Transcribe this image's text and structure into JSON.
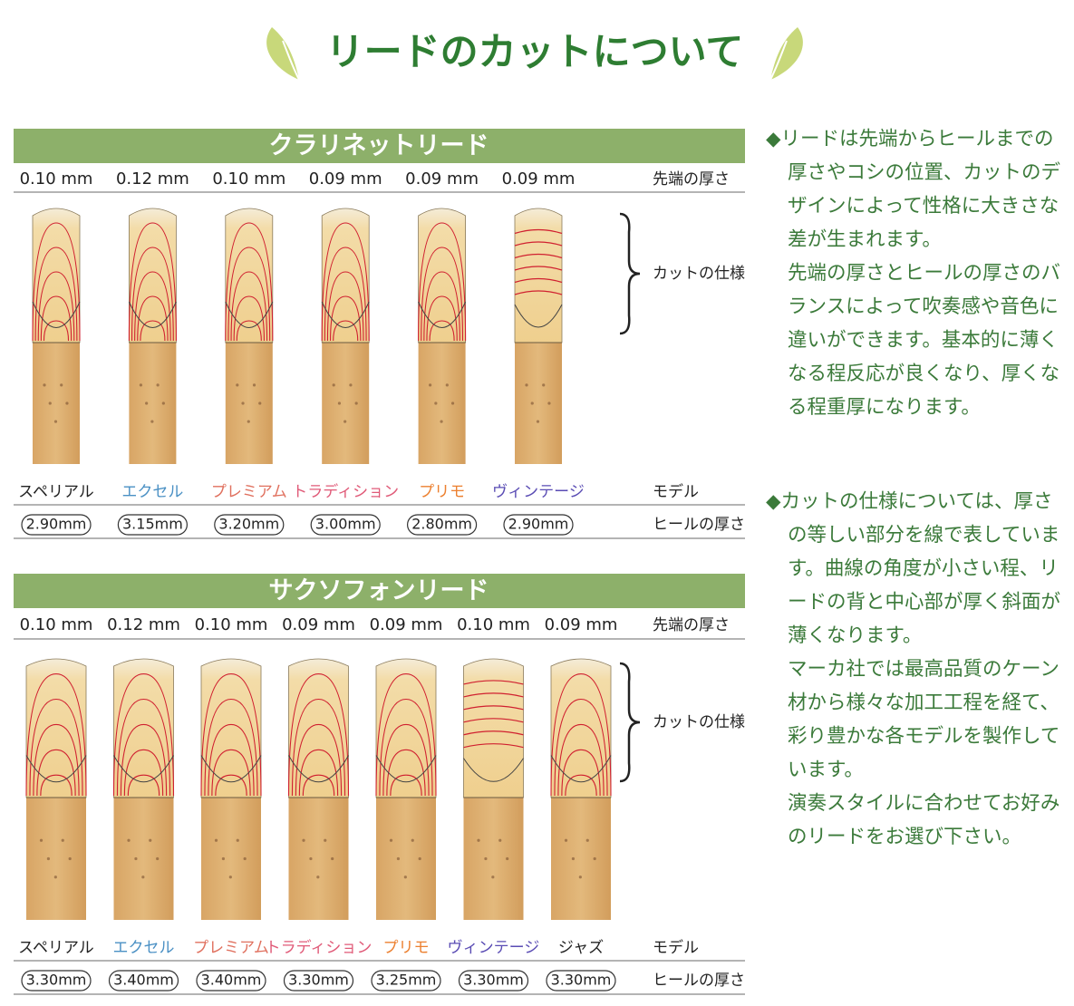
{
  "title": "リードのカットについて",
  "sections": [
    {
      "heading": "クラリネットリード",
      "tip_label": "先端の厚さ",
      "cut_label": "カットの仕様",
      "model_label": "モデル",
      "heel_label": "ヒールの厚さ",
      "reeds": [
        {
          "tip": "0.10 mm",
          "model": "スペリアル",
          "color": "#222222",
          "heel": "2.90mm"
        },
        {
          "tip": "0.12 mm",
          "model": "エクセル",
          "color": "#4a90c4",
          "heel": "3.15mm"
        },
        {
          "tip": "0.10 mm",
          "model": "プレミアム",
          "color": "#e0705e",
          "heel": "3.20mm"
        },
        {
          "tip": "0.09 mm",
          "model": "トラディション",
          "color": "#e05a78",
          "heel": "3.00mm"
        },
        {
          "tip": "0.09 mm",
          "model": "プリモ",
          "color": "#ec8030",
          "heel": "2.80mm"
        },
        {
          "tip": "0.09 mm",
          "model": "ヴィンテージ",
          "color": "#5a4cb4",
          "heel": "2.90mm"
        }
      ]
    },
    {
      "heading": "サクソフォンリード",
      "tip_label": "先端の厚さ",
      "cut_label": "カットの仕様",
      "model_label": "モデル",
      "heel_label": "ヒールの厚さ",
      "reeds": [
        {
          "tip": "0.10 mm",
          "model": "スペリアル",
          "color": "#222222",
          "heel": "3.30mm"
        },
        {
          "tip": "0.12 mm",
          "model": "エクセル",
          "color": "#4a90c4",
          "heel": "3.40mm"
        },
        {
          "tip": "0.10 mm",
          "model": "プレミアム",
          "color": "#e0705e",
          "heel": "3.40mm"
        },
        {
          "tip": "0.09 mm",
          "model": "トラディション",
          "color": "#e05a78",
          "heel": "3.30mm"
        },
        {
          "tip": "0.09 mm",
          "model": "プリモ",
          "color": "#ec8030",
          "heel": "3.25mm"
        },
        {
          "tip": "0.10 mm",
          "model": "ヴィンテージ",
          "color": "#5a4cb4",
          "heel": "3.30mm"
        },
        {
          "tip": "0.09 mm",
          "model": "ジャズ",
          "color": "#222222",
          "heel": "3.30mm"
        }
      ]
    }
  ],
  "notes": [
    [
      "◆リードは先端からヒールまでの厚さやコシの位置、カットのデザインによって性格に大きさな差が生まれます。",
      "先端の厚さとヒールの厚さのバランスによって吹奏感や音色に違いができます。基本的に薄くなる程反応が良くなり、厚くなる程重厚になります。"
    ],
    [
      "◆カットの仕様については、厚さの等しい部分を線で表しています。曲線の角度が小さい程、リードの背と中心部が厚く斜面が薄くなります。",
      "マーカ社では最高品質のケーン材から様々な加工工程を経て、彩り豊かな各モデルを製作しています。",
      "演奏スタイルに合わせてお好みのリードをお選び下さい。"
    ]
  ]
}
